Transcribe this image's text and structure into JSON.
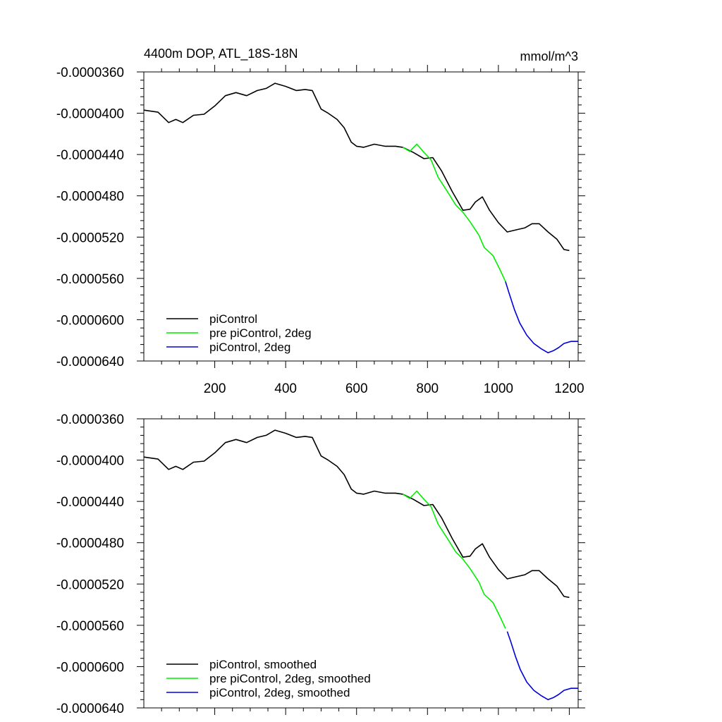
{
  "figure": {
    "title_left": "4400m DOP, ATL_18S-18N",
    "title_right": "mmol/m^3"
  },
  "chart_data": [
    {
      "type": "line",
      "xlim": [
        0,
        1225
      ],
      "ylim": [
        -6.4e-05,
        -3.6e-05
      ],
      "x_ticks": [
        200,
        400,
        600,
        800,
        1000,
        1200
      ],
      "x_tick_labels": [
        "200",
        "400",
        "600",
        "800",
        "1000",
        "1200"
      ],
      "y_ticks": [
        -3.6e-05,
        -4e-05,
        -4.4e-05,
        -4.8e-05,
        -5.2e-05,
        -5.6e-05,
        -6e-05,
        -6.4e-05
      ],
      "y_tick_labels": [
        "-0.0000360",
        "-0.0000400",
        "-0.0000440",
        "-0.0000480",
        "-0.0000520",
        "-0.0000560",
        "-0.0000600",
        "-0.0000640"
      ],
      "legend_position": "bottom-left",
      "series": [
        {
          "name": "piControl",
          "color": "#000000",
          "points": [
            [
              0,
              -3.97e-05
            ],
            [
              40,
              -3.99e-05
            ],
            [
              70,
              -4.09e-05
            ],
            [
              90,
              -4.06e-05
            ],
            [
              110,
              -4.09e-05
            ],
            [
              140,
              -4.02e-05
            ],
            [
              170,
              -4.01e-05
            ],
            [
              200,
              -3.93e-05
            ],
            [
              230,
              -3.83e-05
            ],
            [
              260,
              -3.8e-05
            ],
            [
              290,
              -3.83e-05
            ],
            [
              320,
              -3.78e-05
            ],
            [
              345,
              -3.76e-05
            ],
            [
              370,
              -3.71e-05
            ],
            [
              400,
              -3.74e-05
            ],
            [
              430,
              -3.78e-05
            ],
            [
              455,
              -3.77e-05
            ],
            [
              475,
              -3.78e-05
            ],
            [
              500,
              -3.96e-05
            ],
            [
              520,
              -4e-05
            ],
            [
              545,
              -4.06e-05
            ],
            [
              565,
              -4.14e-05
            ],
            [
              585,
              -4.28e-05
            ],
            [
              600,
              -4.32e-05
            ],
            [
              620,
              -4.33e-05
            ],
            [
              650,
              -4.3e-05
            ],
            [
              680,
              -4.32e-05
            ],
            [
              710,
              -4.32e-05
            ],
            [
              730,
              -4.33e-05
            ],
            [
              760,
              -4.38e-05
            ],
            [
              790,
              -4.44e-05
            ],
            [
              815,
              -4.43e-05
            ],
            [
              840,
              -4.56e-05
            ],
            [
              870,
              -4.76e-05
            ],
            [
              900,
              -4.94e-05
            ],
            [
              920,
              -4.93e-05
            ],
            [
              935,
              -4.86e-05
            ],
            [
              955,
              -4.81e-05
            ],
            [
              975,
              -4.94e-05
            ],
            [
              1000,
              -5.06e-05
            ],
            [
              1025,
              -5.15e-05
            ],
            [
              1050,
              -5.13e-05
            ],
            [
              1075,
              -5.11e-05
            ],
            [
              1095,
              -5.07e-05
            ],
            [
              1115,
              -5.07e-05
            ],
            [
              1140,
              -5.15e-05
            ],
            [
              1165,
              -5.22e-05
            ],
            [
              1185,
              -5.32e-05
            ],
            [
              1200,
              -5.33e-05
            ]
          ]
        },
        {
          "name": "pre piControl, 2deg",
          "color": "#00ee00",
          "points": [
            [
              730,
              -4.33e-05
            ],
            [
              750,
              -4.37e-05
            ],
            [
              770,
              -4.3e-05
            ],
            [
              790,
              -4.38e-05
            ],
            [
              810,
              -4.45e-05
            ],
            [
              830,
              -4.62e-05
            ],
            [
              860,
              -4.78e-05
            ],
            [
              880,
              -4.89e-05
            ],
            [
              900,
              -4.96e-05
            ],
            [
              920,
              -5.05e-05
            ],
            [
              945,
              -5.18e-05
            ],
            [
              960,
              -5.3e-05
            ],
            [
              985,
              -5.38e-05
            ],
            [
              1005,
              -5.52e-05
            ],
            [
              1020,
              -5.63e-05
            ]
          ]
        },
        {
          "name": "piControl, 2deg",
          "color": "#0000dd",
          "points": [
            [
              1020,
              -5.63e-05
            ],
            [
              1030,
              -5.74e-05
            ],
            [
              1045,
              -5.9e-05
            ],
            [
              1060,
              -6.03e-05
            ],
            [
              1080,
              -6.15e-05
            ],
            [
              1100,
              -6.23e-05
            ],
            [
              1120,
              -6.28e-05
            ],
            [
              1140,
              -6.32e-05
            ],
            [
              1155,
              -6.3e-05
            ],
            [
              1170,
              -6.27e-05
            ],
            [
              1185,
              -6.23e-05
            ],
            [
              1205,
              -6.21e-05
            ],
            [
              1225,
              -6.21e-05
            ]
          ]
        }
      ]
    },
    {
      "type": "line",
      "xlim": [
        0,
        1225
      ],
      "ylim": [
        -6.4e-05,
        -3.6e-05
      ],
      "x_ticks": [
        200,
        400,
        600,
        800,
        1000,
        1200
      ],
      "x_tick_labels": [],
      "y_ticks": [
        -3.6e-05,
        -4e-05,
        -4.4e-05,
        -4.8e-05,
        -5.2e-05,
        -5.6e-05,
        -6e-05,
        -6.4e-05
      ],
      "y_tick_labels": [
        "-0.0000360",
        "-0.0000400",
        "-0.0000440",
        "-0.0000480",
        "-0.0000520",
        "-0.0000560",
        "-0.0000600",
        "-0.0000640"
      ],
      "legend_position": "bottom-left",
      "series": [
        {
          "name": "piControl, smoothed",
          "color": "#000000",
          "points": [
            [
              0,
              -3.97e-05
            ],
            [
              40,
              -3.99e-05
            ],
            [
              70,
              -4.09e-05
            ],
            [
              90,
              -4.06e-05
            ],
            [
              110,
              -4.09e-05
            ],
            [
              140,
              -4.02e-05
            ],
            [
              170,
              -4.01e-05
            ],
            [
              200,
              -3.93e-05
            ],
            [
              230,
              -3.83e-05
            ],
            [
              260,
              -3.8e-05
            ],
            [
              290,
              -3.83e-05
            ],
            [
              320,
              -3.78e-05
            ],
            [
              345,
              -3.76e-05
            ],
            [
              370,
              -3.71e-05
            ],
            [
              400,
              -3.74e-05
            ],
            [
              430,
              -3.78e-05
            ],
            [
              455,
              -3.77e-05
            ],
            [
              475,
              -3.78e-05
            ],
            [
              500,
              -3.96e-05
            ],
            [
              520,
              -4e-05
            ],
            [
              545,
              -4.06e-05
            ],
            [
              565,
              -4.14e-05
            ],
            [
              585,
              -4.28e-05
            ],
            [
              600,
              -4.32e-05
            ],
            [
              620,
              -4.33e-05
            ],
            [
              650,
              -4.3e-05
            ],
            [
              680,
              -4.32e-05
            ],
            [
              710,
              -4.32e-05
            ],
            [
              730,
              -4.33e-05
            ],
            [
              760,
              -4.38e-05
            ],
            [
              790,
              -4.44e-05
            ],
            [
              815,
              -4.43e-05
            ],
            [
              840,
              -4.56e-05
            ],
            [
              870,
              -4.76e-05
            ],
            [
              900,
              -4.94e-05
            ],
            [
              920,
              -4.93e-05
            ],
            [
              935,
              -4.86e-05
            ],
            [
              955,
              -4.81e-05
            ],
            [
              975,
              -4.94e-05
            ],
            [
              1000,
              -5.06e-05
            ],
            [
              1025,
              -5.15e-05
            ],
            [
              1050,
              -5.13e-05
            ],
            [
              1075,
              -5.11e-05
            ],
            [
              1095,
              -5.07e-05
            ],
            [
              1115,
              -5.07e-05
            ],
            [
              1140,
              -5.15e-05
            ],
            [
              1165,
              -5.22e-05
            ],
            [
              1185,
              -5.32e-05
            ],
            [
              1200,
              -5.33e-05
            ]
          ]
        },
        {
          "name": "pre piControl, 2deg, smoothed",
          "color": "#00ee00",
          "points": [
            [
              730,
              -4.33e-05
            ],
            [
              750,
              -4.37e-05
            ],
            [
              770,
              -4.3e-05
            ],
            [
              790,
              -4.38e-05
            ],
            [
              810,
              -4.45e-05
            ],
            [
              830,
              -4.62e-05
            ],
            [
              860,
              -4.78e-05
            ],
            [
              880,
              -4.89e-05
            ],
            [
              900,
              -4.96e-05
            ],
            [
              920,
              -5.05e-05
            ],
            [
              945,
              -5.18e-05
            ],
            [
              960,
              -5.3e-05
            ],
            [
              985,
              -5.38e-05
            ],
            [
              1005,
              -5.52e-05
            ],
            [
              1020,
              -5.63e-05
            ]
          ]
        },
        {
          "name": "piControl, 2deg, smoothed",
          "color": "#0000dd",
          "points": [
            [
              1025,
              -5.66e-05
            ],
            [
              1035,
              -5.76e-05
            ],
            [
              1048,
              -5.9e-05
            ],
            [
              1062,
              -6.03e-05
            ],
            [
              1080,
              -6.15e-05
            ],
            [
              1100,
              -6.23e-05
            ],
            [
              1120,
              -6.28e-05
            ],
            [
              1140,
              -6.32e-05
            ],
            [
              1155,
              -6.3e-05
            ],
            [
              1170,
              -6.27e-05
            ],
            [
              1185,
              -6.23e-05
            ],
            [
              1205,
              -6.21e-05
            ],
            [
              1225,
              -6.21e-05
            ]
          ]
        }
      ]
    }
  ]
}
